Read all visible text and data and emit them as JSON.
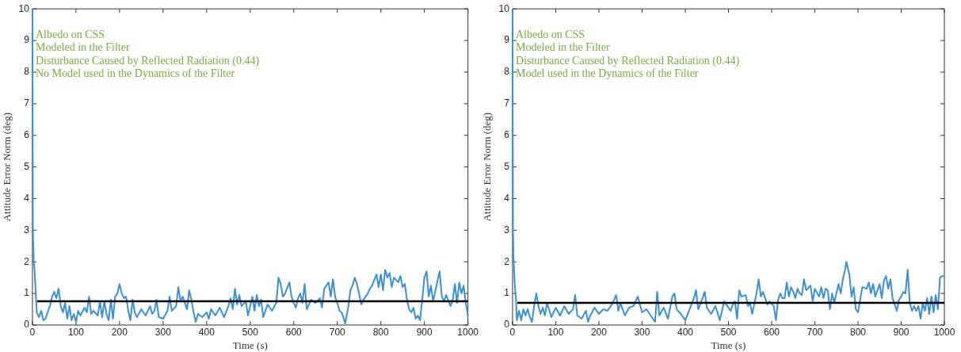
{
  "chart_data": [
    {
      "type": "line",
      "xlabel": "Time (s)",
      "ylabel": "Attitude Error Norm (deg)",
      "xlim": [
        0,
        1000
      ],
      "ylim": [
        0,
        10
      ],
      "xticks": [
        0,
        100,
        200,
        300,
        400,
        500,
        600,
        700,
        800,
        900,
        1000
      ],
      "yticks": [
        0,
        1,
        2,
        3,
        4,
        5,
        6,
        7,
        8,
        9,
        10
      ],
      "grid": false,
      "legend": false,
      "marker": "none",
      "line_style": "solid",
      "annotations": [
        "Albedo on CSS",
        "Modeled in the Filter",
        "Disturbance Caused by Reflected Radiation (0.44)",
        "No Model used in the Dynamics of the Filter"
      ],
      "ref_lines": [
        {
          "axis": "y",
          "value": 0.75,
          "color": "#000000"
        }
      ],
      "series": [
        {
          "color": "#3b8fd4",
          "x": [
            0,
            1,
            3,
            5,
            8,
            10,
            15,
            20,
            25,
            30,
            35,
            40,
            45,
            50,
            55,
            60,
            65,
            70,
            75,
            80,
            85,
            90,
            95,
            100,
            105,
            110,
            120,
            125,
            130,
            135,
            140,
            150,
            155,
            160,
            165,
            170,
            175,
            180,
            185,
            190,
            195,
            200,
            205,
            210,
            215,
            220,
            225,
            230,
            235,
            240,
            250,
            260,
            270,
            275,
            280,
            285,
            290,
            300,
            310,
            315,
            320,
            330,
            335,
            340,
            345,
            350,
            355,
            360,
            365,
            370,
            375,
            380,
            390,
            400,
            405,
            410,
            420,
            430,
            440,
            450,
            455,
            460,
            465,
            470,
            475,
            480,
            490,
            495,
            500,
            505,
            510,
            515,
            520,
            525,
            530,
            540,
            550,
            560,
            565,
            570,
            575,
            580,
            590,
            595,
            600,
            605,
            610,
            615,
            620,
            625,
            630,
            640,
            650,
            660,
            665,
            670,
            680,
            685,
            690,
            695,
            700,
            705,
            710,
            715,
            718,
            725,
            730,
            735,
            740,
            745,
            750,
            755,
            760,
            770,
            775,
            780,
            790,
            795,
            800,
            805,
            810,
            815,
            820,
            825,
            830,
            840,
            845,
            850,
            855,
            860,
            865,
            870,
            875,
            880,
            885,
            890,
            895,
            900,
            905,
            910,
            915,
            920,
            930,
            935,
            940,
            945,
            950,
            960,
            965,
            970,
            975,
            980,
            985,
            990,
            995,
            1000
          ],
          "values": [
            10,
            3,
            2.0,
            1.7,
            0.9,
            0.4,
            0.25,
            0.45,
            0.15,
            0.2,
            0.4,
            0.6,
            0.9,
            1.05,
            0.85,
            1.15,
            0.6,
            0.4,
            0.7,
            0.2,
            0.6,
            0.15,
            0.35,
            0.1,
            0.45,
            0.3,
            0.55,
            0.4,
            0.9,
            0.35,
            0.45,
            0.3,
            0.75,
            0.25,
            0.75,
            0.35,
            0.15,
            0.8,
            0.2,
            0.9,
            1.0,
            1.3,
            1.0,
            0.85,
            0.9,
            0.45,
            0.15,
            0.8,
            0.4,
            0.25,
            0.5,
            0.3,
            0.6,
            0.35,
            0.45,
            0.8,
            0.25,
            0.2,
            0.45,
            0.9,
            0.45,
            0.6,
            1.2,
            0.75,
            0.9,
            0.7,
            0.5,
            1.1,
            0.8,
            0.4,
            0.1,
            0.35,
            0.25,
            0.4,
            0.2,
            0.5,
            0.3,
            0.55,
            0.25,
            0.6,
            0.85,
            0.5,
            1.15,
            0.65,
            0.95,
            0.6,
            0.75,
            0.3,
            0.6,
            0.9,
            0.45,
            0.95,
            0.6,
            0.8,
            0.25,
            0.65,
            0.45,
            0.7,
            1.5,
            1.3,
            0.9,
            1.0,
            1.35,
            0.9,
            0.7,
            0.55,
            0.85,
            1.0,
            0.7,
            1.3,
            0.5,
            0.8,
            0.7,
            0.85,
            0.55,
            1.15,
            1.35,
            0.9,
            1.45,
            0.9,
            0.7,
            0.45,
            0.4,
            0.2,
            0.05,
            0.55,
            1.1,
            1.25,
            1.5,
            1.3,
            1.0,
            0.65,
            0.8,
            1.0,
            1.15,
            1.25,
            1.6,
            1.2,
            1.6,
            1.1,
            1.75,
            1.5,
            1.65,
            1.2,
            1.5,
            1.35,
            1.55,
            1.2,
            1.3,
            0.8,
            0.5,
            0.4,
            0.55,
            0.2,
            0.3,
            0.15,
            0.8,
            1.5,
            1.7,
            0.9,
            1.25,
            0.75,
            1.4,
            1.7,
            0.9,
            0.75,
            0.95,
            0.6,
            0.8,
            1.3,
            0.7,
            1.35,
            1.0,
            1.25,
            0.7,
            0.3
          ]
        }
      ]
    },
    {
      "type": "line",
      "xlabel": "Time (s)",
      "ylabel": "Attitude Error Norm (deg)",
      "xlim": [
        0,
        1000
      ],
      "ylim": [
        0,
        10
      ],
      "xticks": [
        0,
        100,
        200,
        300,
        400,
        500,
        600,
        700,
        800,
        900,
        1000
      ],
      "yticks": [
        0,
        1,
        2,
        3,
        4,
        5,
        6,
        7,
        8,
        9,
        10
      ],
      "grid": false,
      "legend": false,
      "marker": "none",
      "line_style": "solid",
      "annotations": [
        "Albedo on CSS",
        "Modeled in the Filter",
        "Disturbance Caused by Reflected Radiation (0.44)",
        "Model used in the Dynamics of the Filter"
      ],
      "ref_lines": [
        {
          "axis": "y",
          "value": 0.7,
          "color": "#000000"
        }
      ],
      "series": [
        {
          "color": "#3b8fd4",
          "x": [
            0,
            1,
            2,
            5,
            8,
            10,
            15,
            20,
            25,
            30,
            35,
            40,
            45,
            50,
            55,
            60,
            65,
            70,
            75,
            80,
            90,
            100,
            110,
            120,
            130,
            140,
            145,
            150,
            160,
            170,
            175,
            180,
            190,
            200,
            210,
            220,
            230,
            240,
            245,
            250,
            260,
            270,
            280,
            290,
            300,
            310,
            320,
            330,
            335,
            340,
            350,
            360,
            370,
            375,
            380,
            390,
            400,
            410,
            420,
            425,
            430,
            440,
            445,
            450,
            460,
            470,
            480,
            490,
            500,
            505,
            510,
            515,
            520,
            525,
            530,
            540,
            545,
            550,
            555,
            565,
            570,
            575,
            580,
            585,
            590,
            595,
            605,
            610,
            615,
            620,
            625,
            630,
            635,
            640,
            645,
            650,
            655,
            660,
            665,
            670,
            675,
            680,
            690,
            695,
            700,
            710,
            715,
            720,
            725,
            730,
            735,
            740,
            745,
            755,
            760,
            765,
            770,
            773,
            780,
            785,
            790,
            795,
            800,
            805,
            810,
            820,
            825,
            830,
            835,
            840,
            850,
            855,
            860,
            865,
            870,
            875,
            880,
            885,
            890,
            895,
            900,
            905,
            910,
            915,
            920,
            925,
            930,
            935,
            940,
            945,
            950,
            955,
            960,
            965,
            970,
            975,
            980,
            985,
            990,
            995,
            1000
          ],
          "values": [
            10,
            3,
            2.2,
            1.3,
            0.8,
            0.15,
            0.45,
            0.15,
            0.5,
            0.3,
            0.5,
            0.25,
            0.1,
            0.6,
            1.0,
            0.6,
            0.35,
            0.55,
            0.3,
            0.7,
            0.25,
            0.55,
            0.3,
            0.6,
            0.35,
            0.5,
            0.95,
            0.3,
            0.2,
            0.45,
            0.1,
            0.3,
            0.55,
            0.35,
            0.5,
            0.45,
            0.65,
            0.95,
            0.45,
            0.7,
            0.3,
            0.55,
            0.6,
            0.9,
            0.4,
            0.5,
            0.3,
            0.1,
            1.05,
            0.3,
            0.55,
            0.2,
            0.9,
            1.0,
            0.5,
            0.35,
            0.15,
            0.5,
            0.85,
            1.1,
            0.5,
            0.85,
            1.05,
            0.55,
            0.35,
            0.6,
            0.15,
            0.75,
            0.55,
            0.45,
            0.65,
            0.75,
            0.2,
            1.1,
            0.9,
            0.95,
            0.6,
            0.7,
            0.35,
            1.0,
            1.45,
            0.9,
            1.05,
            0.85,
            0.65,
            0.75,
            0.6,
            0.15,
            0.8,
            1.0,
            0.85,
            0.85,
            1.35,
            0.9,
            1.2,
            1.05,
            0.85,
            1.15,
            1.0,
            0.95,
            1.45,
            1.1,
            1.25,
            0.75,
            1.15,
            0.9,
            1.2,
            0.85,
            1.15,
            1.1,
            0.5,
            1.0,
            0.7,
            1.3,
            1.0,
            1.45,
            1.75,
            2.0,
            1.6,
            0.9,
            1.2,
            0.5,
            0.4,
            0.8,
            1.2,
            1.15,
            1.35,
            1.0,
            1.3,
            0.9,
            1.3,
            0.85,
            1.4,
            1.55,
            1.15,
            1.45,
            0.85,
            0.65,
            0.45,
            0.8,
            0.9,
            1.05,
            1.0,
            1.75,
            0.7,
            0.45,
            0.6,
            0.45,
            0.6,
            0.2,
            0.7,
            0.45,
            0.85,
            0.35,
            0.9,
            0.4,
            0.95,
            0.5,
            1.5,
            1.55,
            1.55
          ]
        }
      ]
    }
  ]
}
